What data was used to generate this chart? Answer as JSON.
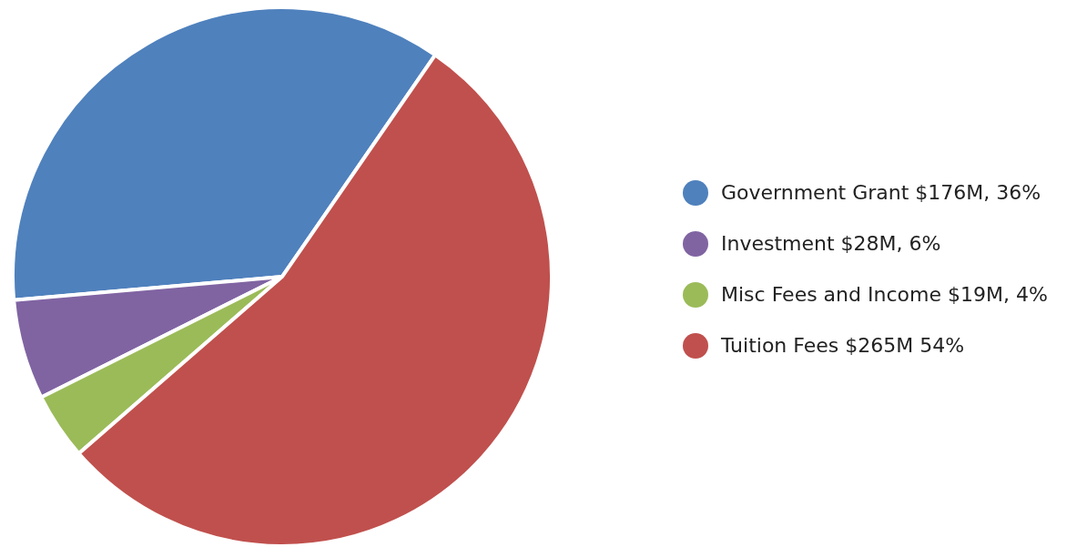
{
  "chart_data": {
    "type": "pie",
    "categories": [
      "Government Grant $176M, 36%",
      "Investment $28M, 6%",
      "Misc Fees and Income $19M, 4%",
      "Tuition Fees $265M 54%"
    ],
    "values": [
      36,
      6,
      4,
      54
    ],
    "colors": [
      "#4f81bd",
      "#8064a2",
      "#9bbb59",
      "#c0504d"
    ],
    "legend": "right"
  }
}
